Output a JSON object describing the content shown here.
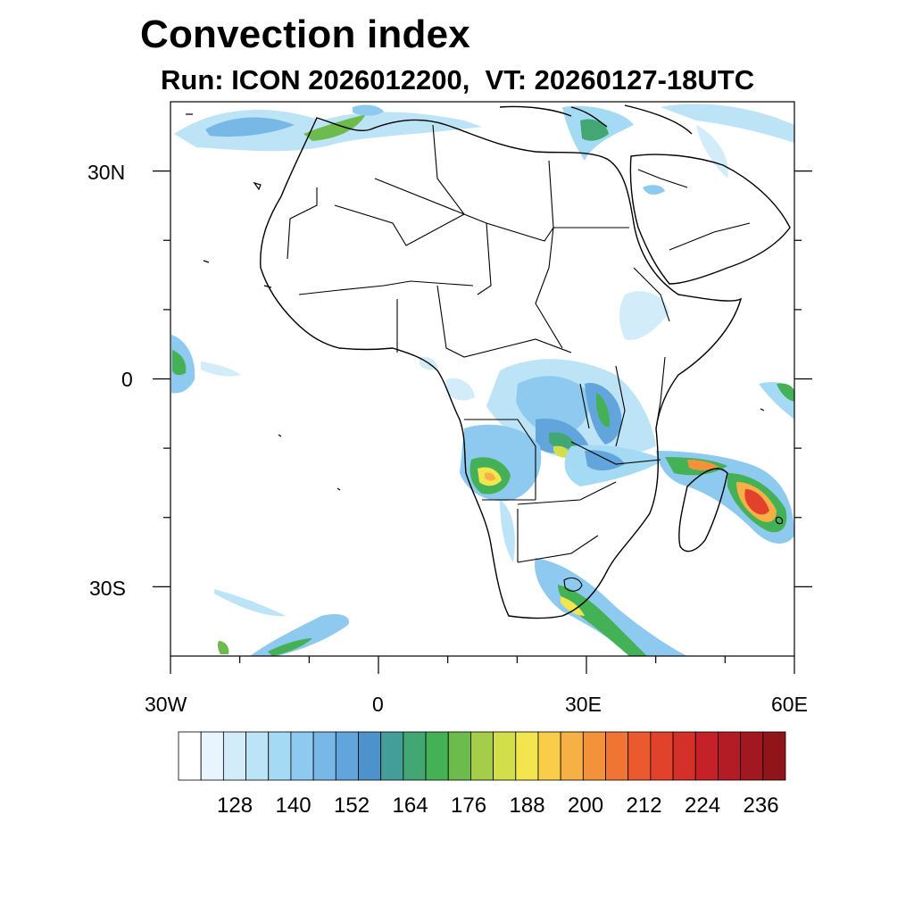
{
  "title": "Convection index",
  "subtitle": "Run: ICON 2026012200,  VT: 20260127-18UTC",
  "axes": {
    "lat_labels": [
      "30N",
      "0",
      "30S"
    ],
    "lon_labels": [
      "30W",
      "0",
      "30E",
      "60E"
    ],
    "lon_range": [
      -30,
      60
    ],
    "lat_range": [
      -40,
      40
    ]
  },
  "colorbar": {
    "labels": [
      "128",
      "140",
      "152",
      "164",
      "176",
      "188",
      "200",
      "212",
      "224",
      "236"
    ],
    "colors": [
      "#ffffff",
      "#e9f5fc",
      "#d3ecf9",
      "#bde3f7",
      "#a5daf5",
      "#8ecaef",
      "#78b8e6",
      "#62a5dc",
      "#4d92cb",
      "#439e9a",
      "#42a773",
      "#45b156",
      "#6ebb4d",
      "#a6cd4a",
      "#d2df4b",
      "#f2e54f",
      "#f9cd4a",
      "#f6b043",
      "#f4923b",
      "#f07434",
      "#ea5a2e",
      "#e2422b",
      "#d52f2a",
      "#c42228",
      "#b31b25",
      "#a11820",
      "#8f151b"
    ]
  },
  "map": {
    "background": "#ffffff",
    "border_color": "#000000"
  }
}
